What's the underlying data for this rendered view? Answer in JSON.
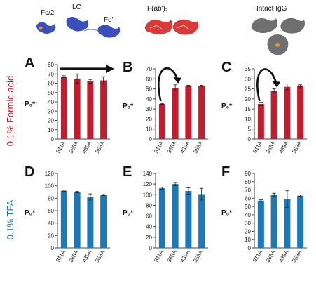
{
  "figure": {
    "structures": [
      {
        "id": "fc-lc-fd",
        "labels": [
          "Fc/2",
          "LC",
          "Fd'"
        ]
      },
      {
        "id": "fab2",
        "labels": [
          "F(ab')₂"
        ]
      },
      {
        "id": "intact",
        "labels": [
          "Intact IgG"
        ]
      }
    ],
    "row_labels": [
      "0.1% Formic acid",
      "0.1% TFA"
    ],
    "colors": {
      "formic": "#be1e2d",
      "tfa": "#1f78b4",
      "error": "#222222",
      "arrow": "#111111",
      "struct_blue": "#3b4fb8",
      "struct_red": "#d83a3a",
      "struct_gray": "#6f6f6f",
      "struct_orange": "#e8913a"
    }
  },
  "chart_data": [
    {
      "panel": "A",
      "type": "bar",
      "row": "0.1% Formic acid",
      "categories": [
        "311A",
        "365A",
        "439A",
        "553A"
      ],
      "values": [
        67,
        65,
        62,
        63
      ],
      "errors": [
        1,
        5,
        2,
        4
      ],
      "ylabel": "P₀*",
      "ylim": [
        0,
        80
      ],
      "yticks": [
        0,
        10,
        20,
        30,
        40,
        50,
        60,
        70,
        80
      ],
      "annotation": "straight-arrow"
    },
    {
      "panel": "B",
      "type": "bar",
      "row": "0.1% Formic acid",
      "categories": [
        "311A",
        "365A",
        "439A",
        "553A"
      ],
      "values": [
        35,
        51,
        53,
        53
      ],
      "errors": [
        0.5,
        3,
        0.5,
        0.5
      ],
      "ylabel": "P₀*",
      "ylim": [
        0,
        70
      ],
      "yticks": [
        0,
        10,
        20,
        30,
        40,
        50,
        60,
        70
      ],
      "annotation": "curved-arrow"
    },
    {
      "panel": "C",
      "type": "bar",
      "row": "0.1% Formic acid",
      "categories": [
        "311A",
        "365A",
        "439A",
        "553A"
      ],
      "values": [
        17.5,
        24,
        26,
        26.5
      ],
      "errors": [
        0.8,
        1,
        1.5,
        0.5
      ],
      "ylabel": "P₀*",
      "ylim": [
        0,
        35
      ],
      "yticks": [
        0,
        5,
        10,
        15,
        20,
        25,
        30,
        35
      ],
      "annotation": "curved-arrow"
    },
    {
      "panel": "D",
      "type": "bar",
      "row": "0.1% TFA",
      "categories": [
        "311A",
        "365A",
        "439A",
        "553A"
      ],
      "values": [
        92,
        90,
        82,
        85
      ],
      "errors": [
        1,
        1,
        5,
        1
      ],
      "ylabel": "P₀*",
      "ylim": [
        0,
        120
      ],
      "yticks": [
        0,
        20,
        40,
        60,
        80,
        100,
        120
      ]
    },
    {
      "panel": "E",
      "type": "bar",
      "row": "0.1% TFA",
      "categories": [
        "311A",
        "365A",
        "439A",
        "553A"
      ],
      "values": [
        112,
        120,
        107,
        101
      ],
      "errors": [
        2,
        3,
        6,
        11
      ],
      "ylabel": "P₀*",
      "ylim": [
        0,
        140
      ],
      "yticks": [
        0,
        20,
        40,
        60,
        80,
        100,
        120,
        140
      ]
    },
    {
      "panel": "F",
      "type": "bar",
      "row": "0.1% TFA",
      "categories": [
        "311A",
        "365A",
        "439A",
        "553A"
      ],
      "values": [
        57,
        64,
        59,
        63
      ],
      "errors": [
        1,
        2,
        10,
        1
      ],
      "ylabel": "P₀*",
      "ylim": [
        0,
        90
      ],
      "yticks": [
        0,
        10,
        20,
        30,
        40,
        50,
        60,
        70,
        80,
        90
      ]
    }
  ]
}
